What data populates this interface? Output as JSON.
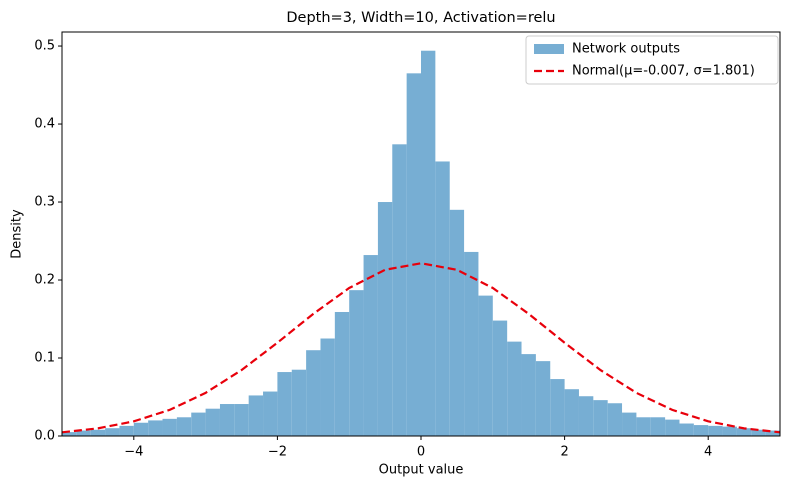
{
  "chart_data": [
    {
      "type": "histogram",
      "title": "Depth=3, Width=10, Activation=relu",
      "xlabel": "Output value",
      "ylabel": "Density",
      "name": "Network outputs",
      "color": "#77aed3",
      "bins": [
        -5,
        -4.8,
        -4.6,
        -4.4,
        -4.2,
        -4,
        -3.8,
        -3.6,
        -3.4,
        -3.2,
        -3,
        -2.8,
        -2.6,
        -2.4,
        -2.2,
        -2,
        -1.8,
        -1.6,
        -1.4,
        -1.2,
        -1,
        -0.8,
        -0.6,
        -0.4,
        -0.2,
        0,
        0.2,
        0.4,
        0.6,
        0.8,
        1,
        1.2,
        1.4,
        1.6,
        1.8,
        2,
        2.2,
        2.4,
        2.6,
        2.8,
        3,
        3.2,
        3.4,
        3.6,
        3.8,
        4,
        4.2,
        4.4,
        4.6,
        4.8,
        5
      ],
      "values": [
        0.005,
        0.007,
        0.008,
        0.01,
        0.013,
        0.017,
        0.02,
        0.022,
        0.024,
        0.03,
        0.035,
        0.041,
        0.041,
        0.052,
        0.057,
        0.082,
        0.085,
        0.11,
        0.125,
        0.159,
        0.187,
        0.232,
        0.3,
        0.374,
        0.465,
        0.494,
        0.352,
        0.29,
        0.236,
        0.18,
        0.148,
        0.121,
        0.105,
        0.096,
        0.073,
        0.06,
        0.051,
        0.046,
        0.042,
        0.03,
        0.024,
        0.024,
        0.021,
        0.016,
        0.014,
        0.013,
        0.012,
        0.01,
        0.008,
        0.007
      ],
      "xlim": [
        -5,
        5
      ],
      "ylim": [
        0,
        0.518
      ],
      "xticks": [
        {
          "value": -4,
          "label": "−4"
        },
        {
          "value": -2,
          "label": "−2"
        },
        0,
        2,
        4
      ],
      "yticks": [
        {
          "value": 0,
          "label": "0.0"
        },
        0.1,
        0.2,
        0.3,
        0.4,
        0.5
      ],
      "legend": "upper right"
    },
    {
      "type": "line",
      "name": "Normal(μ=-0.007, σ=1.801)",
      "color": "#e8000b",
      "dashed": true,
      "x": [
        -5,
        -4.5,
        -4,
        -3.5,
        -3,
        -2.5,
        -2,
        -1.5,
        -1,
        -0.5,
        0,
        0.5,
        1,
        1.5,
        2,
        2.5,
        3,
        3.5,
        4,
        4.5,
        5
      ],
      "values": [
        0.0047,
        0.0098,
        0.0188,
        0.0335,
        0.0553,
        0.0845,
        0.1196,
        0.1566,
        0.1898,
        0.2131,
        0.2215,
        0.2131,
        0.1898,
        0.1566,
        0.1196,
        0.0845,
        0.0553,
        0.0335,
        0.0188,
        0.0098,
        0.0047
      ]
    }
  ]
}
